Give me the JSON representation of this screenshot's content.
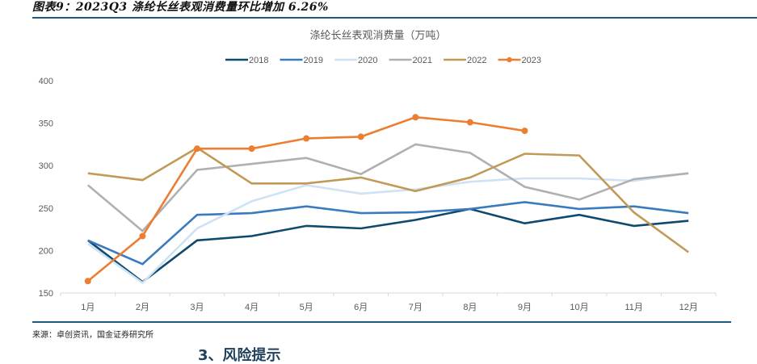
{
  "figure": {
    "title": "图表9：2023Q3 涤纶长丝表观消费量环比增加 6.26%",
    "source": "来源：卓创资讯，国金证券研究所",
    "next_section_heading": "3、风险提示"
  },
  "chart_data": {
    "type": "line",
    "title": "涤纶长丝表观消费量（万吨）",
    "xlabel": "",
    "ylabel": "",
    "categories": [
      "1月",
      "2月",
      "3月",
      "4月",
      "5月",
      "6月",
      "7月",
      "8月",
      "9月",
      "10月",
      "11月",
      "12月"
    ],
    "ylim": [
      150,
      400
    ],
    "yticks": [
      150,
      200,
      250,
      300,
      350,
      400
    ],
    "grid": false,
    "legend_position": "top-center",
    "series": [
      {
        "name": "2018",
        "color": "#0e4a6e",
        "markers": false,
        "values": [
          212,
          163,
          212,
          217,
          229,
          226,
          236,
          249,
          232,
          242,
          229,
          235
        ]
      },
      {
        "name": "2019",
        "color": "#3a7bbf",
        "markers": false,
        "values": [
          212,
          184,
          242,
          244,
          252,
          244,
          245,
          249,
          257,
          249,
          252,
          244
        ]
      },
      {
        "name": "2020",
        "color": "#cfe2f3",
        "markers": false,
        "values": [
          208,
          162,
          226,
          258,
          277,
          267,
          272,
          281,
          285,
          285,
          282,
          291
        ]
      },
      {
        "name": "2021",
        "color": "#b0b0b0",
        "markers": false,
        "values": [
          277,
          223,
          295,
          302,
          309,
          290,
          325,
          315,
          275,
          260,
          284,
          291
        ]
      },
      {
        "name": "2022",
        "color": "#c09a56",
        "markers": false,
        "values": [
          291,
          283,
          321,
          279,
          279,
          286,
          270,
          286,
          314,
          312,
          245,
          198
        ]
      },
      {
        "name": "2023",
        "color": "#ed7d31",
        "markers": true,
        "values": [
          164,
          217,
          320,
          320,
          332,
          334,
          357,
          351,
          341,
          null,
          null,
          null
        ]
      }
    ]
  }
}
